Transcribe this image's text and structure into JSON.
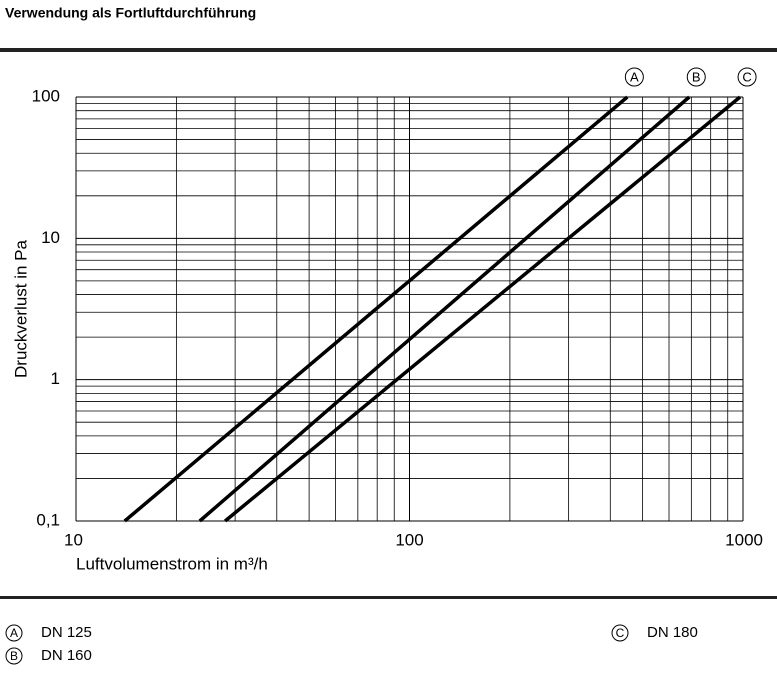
{
  "chart_data": {
    "type": "line",
    "title": "Verwendung als Fortluftdurchführung",
    "xlabel": "Luftvolumenstrom in m³/h",
    "ylabel": "Druckverlust in Pa",
    "xscale": "log",
    "yscale": "log",
    "grid": true,
    "xlim": [
      10,
      1000
    ],
    "ylim": [
      0.1,
      100
    ],
    "xticks": [
      10,
      100,
      1000
    ],
    "yticks": [
      {
        "value": 0.1,
        "label": "0,1"
      },
      1,
      10,
      100
    ],
    "series": [
      {
        "name": "DN 125",
        "marker_label": "A",
        "color": "#000000",
        "x": [
          14,
          450
        ],
        "y": [
          0.1,
          100
        ]
      },
      {
        "name": "DN 160",
        "marker_label": "B",
        "color": "#000000",
        "x": [
          23.5,
          690
        ],
        "y": [
          0.1,
          100
        ]
      },
      {
        "name": "DN 180",
        "marker_label": "C",
        "color": "#000000",
        "x": [
          28,
          980
        ],
        "y": [
          0.1,
          100
        ]
      }
    ]
  }
}
